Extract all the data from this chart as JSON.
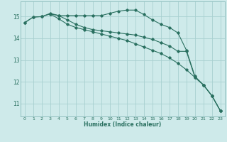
{
  "xlabel": "Humidex (Indice chaleur)",
  "bg_color": "#ceeaea",
  "grid_color": "#a8d0d0",
  "line_color": "#2a7060",
  "xlim": [
    -0.5,
    23.5
  ],
  "ylim": [
    10.4,
    15.7
  ],
  "yticks": [
    11,
    12,
    13,
    14,
    15
  ],
  "xticks": [
    0,
    1,
    2,
    3,
    4,
    5,
    6,
    7,
    8,
    9,
    10,
    11,
    12,
    13,
    14,
    15,
    16,
    17,
    18,
    19,
    20,
    21,
    22,
    23
  ],
  "series1": {
    "x": [
      0,
      1,
      2,
      3,
      4,
      5,
      6,
      7,
      8,
      9,
      10,
      11,
      12,
      13,
      14,
      15,
      16,
      17,
      18,
      19,
      20,
      21,
      22,
      23
    ],
    "y": [
      14.72,
      14.98,
      15.0,
      15.15,
      15.05,
      15.05,
      15.05,
      15.05,
      15.05,
      15.05,
      15.15,
      15.25,
      15.3,
      15.3,
      15.1,
      14.85,
      14.65,
      14.5,
      14.25,
      13.45,
      12.25,
      11.85,
      11.35,
      10.65
    ]
  },
  "series2": {
    "x": [
      0,
      1,
      2,
      3,
      4,
      5,
      6,
      7,
      8,
      9,
      10,
      11,
      12,
      13,
      14,
      15,
      16,
      17,
      18,
      19,
      20,
      21,
      22,
      23
    ],
    "y": [
      14.72,
      14.98,
      15.0,
      15.12,
      15.05,
      14.85,
      14.65,
      14.5,
      14.4,
      14.35,
      14.3,
      14.25,
      14.2,
      14.15,
      14.05,
      13.95,
      13.8,
      13.65,
      13.4,
      13.4,
      12.2,
      11.85,
      11.35,
      10.65
    ]
  },
  "series3": {
    "x": [
      3,
      4,
      5,
      6,
      7,
      8,
      9,
      10,
      11,
      12,
      13,
      14,
      15,
      16,
      17,
      18,
      19,
      20,
      21,
      22,
      23
    ],
    "y": [
      15.12,
      14.9,
      14.65,
      14.5,
      14.4,
      14.3,
      14.2,
      14.1,
      14.0,
      13.9,
      13.75,
      13.6,
      13.45,
      13.3,
      13.1,
      12.85,
      12.55,
      12.2,
      11.85,
      11.35,
      10.65
    ]
  }
}
